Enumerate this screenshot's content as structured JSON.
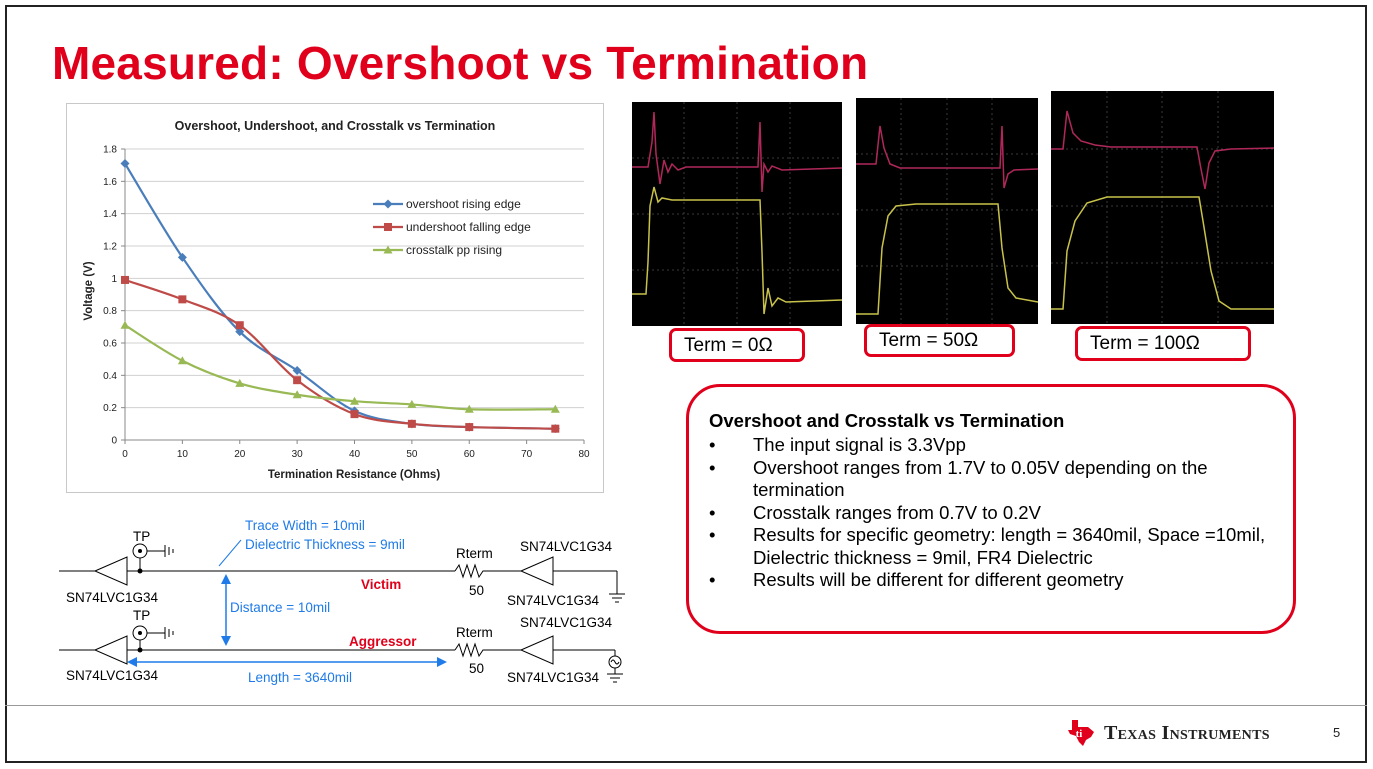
{
  "slide": {
    "title": "Measured: Overshoot vs Termination",
    "page_number": "5",
    "brand": "Texas Instruments",
    "brand_color": "#e0001b",
    "accent_color": "#e0001b"
  },
  "chart_data": {
    "type": "line",
    "title": "Overshoot, Undershoot, and Crosstalk vs Termination",
    "xlabel": "Termination Resistance (Ohms)",
    "ylabel": "Voltage (V)",
    "xlim": [
      0,
      80
    ],
    "ylim": [
      0,
      1.8
    ],
    "xticks": [
      "0",
      "10",
      "20",
      "30",
      "40",
      "50",
      "60",
      "70",
      "80"
    ],
    "yticks": [
      "0",
      "0.2",
      "0.4",
      "0.6",
      "0.8",
      "1",
      "1.2",
      "1.4",
      "1.6",
      "1.8"
    ],
    "grid": "horizontal",
    "legend_position": "right-middle",
    "series": [
      {
        "name": "overshoot rising edge",
        "color": "#4a7ebb",
        "marker": "diamond",
        "x": [
          0,
          10,
          20,
          30,
          40,
          50,
          60,
          75
        ],
        "y": [
          1.71,
          1.13,
          0.67,
          0.43,
          0.18,
          0.1,
          0.08,
          0.07
        ]
      },
      {
        "name": "undershoot falling edge",
        "color": "#be4b48",
        "marker": "square",
        "x": [
          0,
          10,
          20,
          30,
          40,
          50,
          60,
          75
        ],
        "y": [
          0.99,
          0.87,
          0.71,
          0.37,
          0.16,
          0.1,
          0.08,
          0.07
        ]
      },
      {
        "name": "crosstalk pp rising",
        "color": "#98b954",
        "marker": "triangle",
        "x": [
          0,
          10,
          20,
          30,
          40,
          50,
          60,
          75
        ],
        "y": [
          0.71,
          0.49,
          0.35,
          0.28,
          0.24,
          0.22,
          0.19,
          0.19
        ]
      }
    ]
  },
  "scopes": [
    {
      "label": "Term = 0Ω"
    },
    {
      "label": "Term = 50Ω"
    },
    {
      "label": "Term = 100Ω"
    }
  ],
  "summary": {
    "heading": "Overshoot and Crosstalk vs Termination",
    "bullets": [
      "The input signal is 3.3Vpp",
      "Overshoot ranges from 1.7V to 0.05V depending on the termination",
      "Crosstalk ranges from 0.7V to 0.2V",
      "Results for specific geometry: length = 3640mil, Space =10mil, Dielectric thickness = 9mil, FR4 Dielectric",
      "Results will be different for different geometry"
    ]
  },
  "schematic": {
    "trace_width": "Trace Width = 10mil",
    "dielectric_thickness": "Dielectric Thickness = 9mil",
    "distance": "Distance = 10mil",
    "length": "Length = 3640mil",
    "victim": "Victim",
    "aggressor": "Aggressor",
    "tp": "TP",
    "rterm": "Rterm",
    "rterm_value": "50",
    "part": "SN74LVC1G34"
  }
}
